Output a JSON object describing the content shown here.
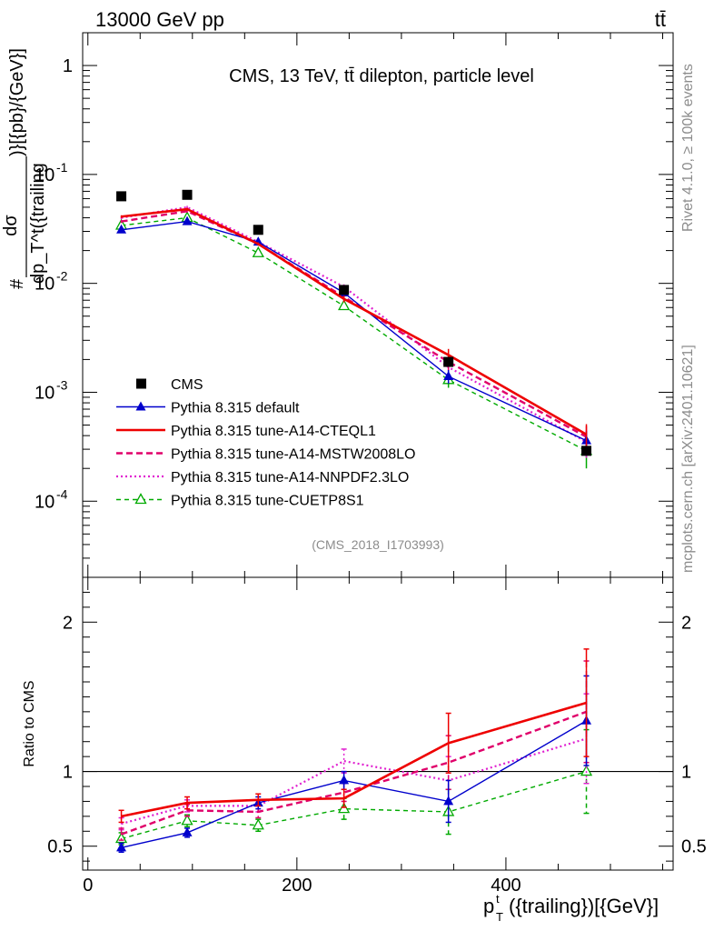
{
  "header": {
    "energy": "13000 GeV pp",
    "process": "tt̄"
  },
  "side_labels": {
    "rivet": "Rivet 4.1.0, ≥ 100k events",
    "mcplots": "mcplots.cern.ch [arXiv:2401.10621]"
  },
  "chart_data": [
    {
      "type": "line",
      "title": "CMS, 13 TeV, tt̄ dilepton, particle level",
      "analysis_id": "(CMS_2018_I1703993)",
      "ylabel": "# dσ / dp_T^t({trailing}) [{pb}/{GeV}]",
      "ylabel_parts": {
        "hash": "#",
        "num": "dσ",
        "den": "dp_T^t({trailing",
        "tail": ")}[{pb}/{GeV}]"
      },
      "yscale": "log",
      "ylim": [
        2e-05,
        2
      ],
      "xlim": [
        -5,
        560
      ],
      "y_ticks": [
        {
          "v": 1,
          "label": "1"
        },
        {
          "v": 0.1,
          "label": "10^-1"
        },
        {
          "v": 0.01,
          "label": "10^-2"
        },
        {
          "v": 0.001,
          "label": "10^-3"
        },
        {
          "v": 0.0001,
          "label": "10^-4"
        }
      ],
      "x": [
        32,
        95,
        163,
        245,
        345,
        477
      ],
      "series": [
        {
          "name": "CMS",
          "style": "data",
          "color": "#000000",
          "values": [
            0.063,
            0.065,
            0.031,
            0.0087,
            0.0019,
            0.00029
          ],
          "err": [
            0.0025,
            0.0025,
            0.0012,
            0.0004,
            0.0001,
            2e-05
          ]
        },
        {
          "name": "Pythia 8.315 default",
          "style": "solid-thin",
          "color": "#0000cc",
          "marker": "filled-triangle",
          "values": [
            0.031,
            0.037,
            0.024,
            0.0082,
            0.0014,
            0.00036
          ],
          "err": [
            0.001,
            0.0012,
            0.0008,
            0.0005,
            0.0002,
            8e-05
          ]
        },
        {
          "name": "Pythia 8.315 tune-A14-CTEQL1",
          "style": "solid-thick",
          "color": "#ee0000",
          "values": [
            0.041,
            0.048,
            0.023,
            0.0072,
            0.0022,
            0.00041
          ],
          "err": [
            0.0012,
            0.0015,
            0.0008,
            0.0005,
            0.0003,
            0.0001
          ]
        },
        {
          "name": "Pythia 8.315 tune-A14-MSTW2008LO",
          "style": "dashed",
          "color": "#e0006a",
          "values": [
            0.037,
            0.046,
            0.023,
            0.0075,
            0.0019,
            0.00039
          ],
          "err": [
            0.0012,
            0.0015,
            0.0008,
            0.0005,
            0.0003,
            0.0001
          ]
        },
        {
          "name": "Pythia 8.315 tune-A14-NNPDF2.3LO",
          "style": "dotted",
          "color": "#e020d0",
          "values": [
            0.04,
            0.05,
            0.024,
            0.0093,
            0.0017,
            0.00035
          ],
          "err": [
            0.0012,
            0.0015,
            0.0008,
            0.0005,
            0.0003,
            0.0001
          ]
        },
        {
          "name": "Pythia 8.315 tune-CUETP8S1",
          "style": "dashed-thin",
          "color": "#00aa00",
          "marker": "open-triangle",
          "values": [
            0.034,
            0.04,
            0.019,
            0.0062,
            0.0013,
            0.00029
          ],
          "err": [
            0.001,
            0.0012,
            0.0007,
            0.0005,
            0.0002,
            9e-05
          ]
        }
      ],
      "legend_location": "lower-left"
    },
    {
      "type": "line",
      "ylabel": "Ratio to CMS",
      "xlabel": "p_T^t({trailing})[{GeV}]",
      "xlabel_parts": {
        "p": "p",
        "sup": "t",
        "sub": "T",
        "rest": "({trailing})[{GeV}]"
      },
      "ylim": [
        0.34,
        2.3
      ],
      "xlim": [
        -5,
        560
      ],
      "y_ticks": [
        {
          "v": 0.5,
          "label": "0.5"
        },
        {
          "v": 1,
          "label": "1"
        },
        {
          "v": 2,
          "label": "2"
        }
      ],
      "x_ticks": [
        {
          "v": 0,
          "label": "0"
        },
        {
          "v": 200,
          "label": "200"
        },
        {
          "v": 400,
          "label": "400"
        }
      ],
      "reference": 1,
      "x": [
        32,
        95,
        163,
        245,
        345,
        477
      ],
      "series": [
        {
          "name": "Pythia 8.315 default",
          "color": "#0000cc",
          "values": [
            0.49,
            0.59,
            0.79,
            0.94,
            0.8,
            1.34
          ],
          "err": [
            0.03,
            0.03,
            0.04,
            0.06,
            0.14,
            0.3
          ]
        },
        {
          "name": "Pythia 8.315 tune-A14-CTEQL1",
          "color": "#ee0000",
          "values": [
            0.7,
            0.79,
            0.81,
            0.82,
            1.19,
            1.46
          ],
          "err": [
            0.04,
            0.04,
            0.04,
            0.06,
            0.2,
            0.36
          ]
        },
        {
          "name": "Pythia 8.315 tune-A14-MSTW2008LO",
          "color": "#e0006a",
          "values": [
            0.58,
            0.74,
            0.73,
            0.86,
            1.06,
            1.4
          ],
          "err": [
            0.04,
            0.04,
            0.04,
            0.06,
            0.18,
            0.34
          ]
        },
        {
          "name": "Pythia 8.315 tune-A14-NNPDF2.3LO",
          "color": "#e020d0",
          "values": [
            0.65,
            0.77,
            0.77,
            1.07,
            0.94,
            1.22
          ],
          "err": [
            0.04,
            0.04,
            0.04,
            0.08,
            0.16,
            0.3
          ]
        },
        {
          "name": "Pythia 8.315 tune-CUETP8S1",
          "color": "#00aa00",
          "values": [
            0.55,
            0.67,
            0.64,
            0.75,
            0.73,
            1.0
          ],
          "err": [
            0.04,
            0.04,
            0.04,
            0.07,
            0.15,
            0.28
          ]
        }
      ]
    }
  ]
}
